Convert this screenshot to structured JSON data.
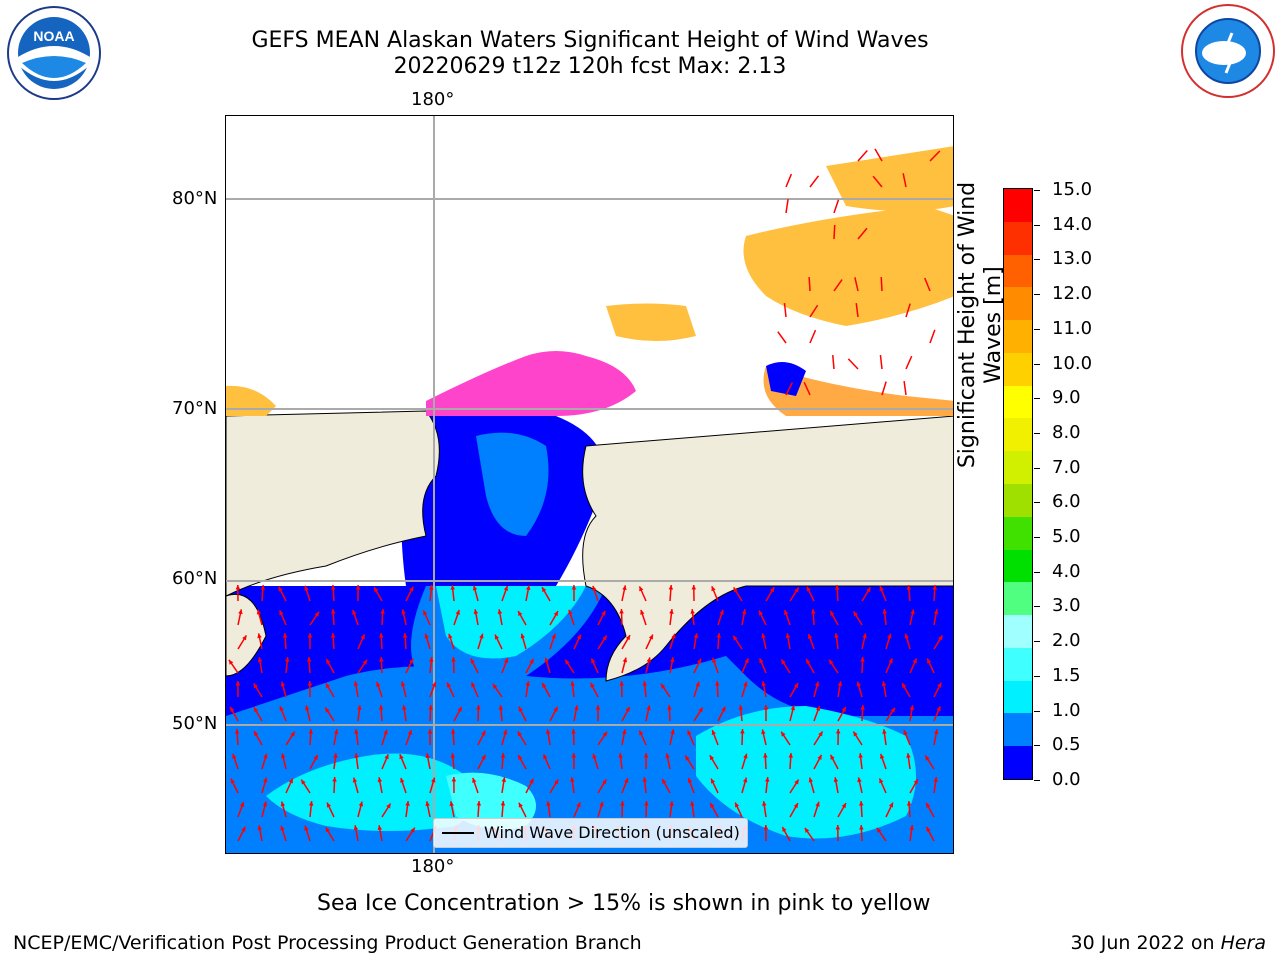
{
  "header": {
    "title": "GEFS MEAN Alaskan Waters Significant Height of Wind Waves",
    "subtitle": "20220629 t12z 120h fcst   Max: 2.13"
  },
  "logos": {
    "left": "NOAA",
    "right": "NATIONAL WEATHER SERVICE"
  },
  "map": {
    "top_lon_label": "180°",
    "bottom_lon_label": "180°",
    "lat_labels": [
      "80°N",
      "70°N",
      "60°N",
      "50°N"
    ],
    "legend_label": "Wind Wave Direction (unscaled)",
    "arrow_color": "#ff0000",
    "land_color": "#efecdc",
    "ice_colors": [
      "#ff44cc",
      "#ffaa44",
      "#ffc040"
    ]
  },
  "colorbar": {
    "title": "Significant Height of Wind Waves [m]",
    "ticks": [
      "15.0",
      "14.0",
      "13.0",
      "12.0",
      "11.0",
      "10.0",
      "9.0",
      "8.0",
      "7.0",
      "6.0",
      "5.0",
      "4.0",
      "3.0",
      "2.0",
      "1.5",
      "1.0",
      "0.5",
      "0.0"
    ],
    "colors_bottom_up": [
      "#0000ff",
      "#0080ff",
      "#00f0ff",
      "#40ffff",
      "#a0ffff",
      "#50ff80",
      "#00e000",
      "#40e000",
      "#a0e000",
      "#d0f000",
      "#f0f000",
      "#ffff00",
      "#ffd000",
      "#ffb000",
      "#ff8c00",
      "#ff6000",
      "#ff3000",
      "#ff0000"
    ]
  },
  "caption": "Sea Ice Concentration > 15% is shown in pink to yellow",
  "footer": {
    "left": "NCEP/EMC/Verification Post Processing Product Generation Branch",
    "right_date": "30 Jun 2022 on ",
    "right_host": "Hera"
  }
}
